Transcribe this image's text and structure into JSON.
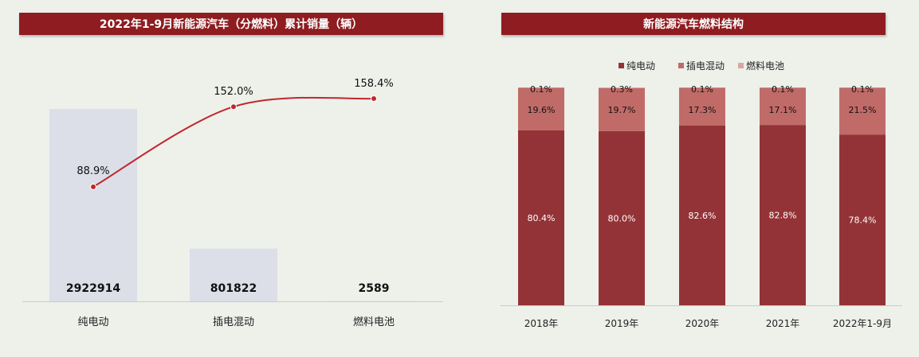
{
  "chart_data": [
    {
      "type": "bar+line",
      "title": "2022年1-9月新能源汽车（分燃料）累计销量（辆）",
      "categories": [
        "纯电动",
        "插电混动",
        "燃料电池"
      ],
      "bars": {
        "values": [
          2922914,
          801822,
          2589
        ],
        "labels": [
          "2922914",
          "801822",
          "2589"
        ],
        "color": "#dcdee8"
      },
      "line": {
        "values": [
          88.9,
          152.0,
          158.4
        ],
        "labels": [
          "88.9%",
          "152.0%",
          "158.4%"
        ],
        "color": "#c0272d"
      }
    },
    {
      "type": "stacked-bar",
      "title": "新能源汽车燃料结构",
      "categories": [
        "2018年",
        "2019年",
        "2020年",
        "2021年",
        "2022年1-9月"
      ],
      "series": [
        {
          "name": "纯电动",
          "values": [
            80.4,
            80.0,
            82.6,
            82.8,
            78.4
          ],
          "labels": [
            "80.4%",
            "80.0%",
            "82.6%",
            "82.8%",
            "78.4%"
          ],
          "color": "#943337"
        },
        {
          "name": "插电混动",
          "values": [
            19.6,
            19.7,
            17.3,
            17.1,
            21.5
          ],
          "labels": [
            "19.6%",
            "19.7%",
            "17.3%",
            "17.1%",
            "21.5%"
          ],
          "color": "#c06b68"
        },
        {
          "name": "燃料电池",
          "values": [
            0.1,
            0.3,
            0.1,
            0.1,
            0.1
          ],
          "labels": [
            "0.1%",
            "0.3%",
            "0.1%",
            "0.1%",
            "0.1%"
          ],
          "color": "#d9a6a3"
        }
      ],
      "legend_position": "top"
    }
  ]
}
